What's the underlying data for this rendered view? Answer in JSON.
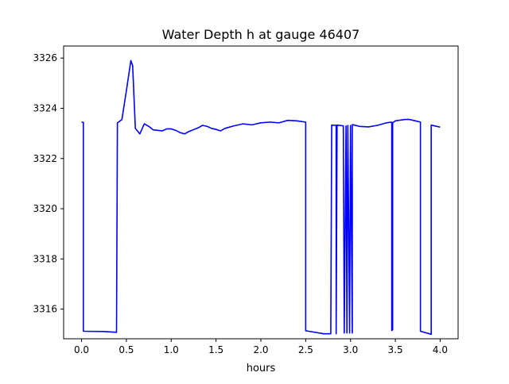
{
  "chart_data": {
    "type": "line",
    "title": "Water Depth h at gauge 46407",
    "xlabel": "hours",
    "ylabel": "",
    "xlim": [
      -0.2,
      4.2
    ],
    "ylim": [
      3314.82,
      3326.48
    ],
    "x_ticks": [
      0.0,
      0.5,
      1.0,
      1.5,
      2.0,
      2.5,
      3.0,
      3.5,
      4.0
    ],
    "x_tick_labels": [
      "0.0",
      "0.5",
      "1.0",
      "1.5",
      "2.0",
      "2.5",
      "3.0",
      "3.5",
      "4.0"
    ],
    "y_ticks": [
      3316,
      3318,
      3320,
      3322,
      3324,
      3326
    ],
    "y_tick_labels": [
      "3316",
      "3318",
      "3320",
      "3322",
      "3324",
      "3326"
    ],
    "grid": false,
    "legend": "none",
    "series": [
      {
        "color": "#0000ff",
        "x": [
          0.0,
          0.02,
          0.02,
          0.25,
          0.39,
          0.4,
          0.45,
          0.5,
          0.55,
          0.57,
          0.6,
          0.65,
          0.7,
          0.75,
          0.8,
          0.85,
          0.9,
          0.95,
          1.0,
          1.05,
          1.1,
          1.15,
          1.2,
          1.3,
          1.35,
          1.4,
          1.45,
          1.5,
          1.55,
          1.6,
          1.7,
          1.8,
          1.9,
          2.0,
          2.1,
          2.2,
          2.3,
          2.4,
          2.5,
          2.5,
          2.6,
          2.7,
          2.78,
          2.79,
          2.84,
          2.84,
          2.85,
          2.92,
          2.93,
          2.95,
          2.96,
          2.97,
          2.99,
          3.0,
          3.02,
          3.02,
          3.1,
          3.2,
          3.3,
          3.4,
          3.46,
          3.46,
          3.47,
          3.47,
          3.5,
          3.6,
          3.65,
          3.7,
          3.78,
          3.78,
          3.9,
          3.9,
          4.0
        ],
        "y": [
          3323.45,
          3323.44,
          3315.12,
          3315.11,
          3315.08,
          3323.42,
          3323.55,
          3324.7,
          3325.9,
          3325.7,
          3323.2,
          3322.98,
          3323.38,
          3323.28,
          3323.14,
          3323.12,
          3323.1,
          3323.18,
          3323.18,
          3323.12,
          3323.03,
          3322.98,
          3323.08,
          3323.22,
          3323.32,
          3323.28,
          3323.2,
          3323.16,
          3323.1,
          3323.2,
          3323.3,
          3323.38,
          3323.34,
          3323.42,
          3323.45,
          3323.42,
          3323.52,
          3323.5,
          3323.45,
          3315.14,
          3315.08,
          3315.02,
          3315.02,
          3323.33,
          3323.32,
          3315.02,
          3323.33,
          3323.3,
          3315.05,
          3323.3,
          3315.05,
          3323.32,
          3315.05,
          3323.32,
          3315.05,
          3323.35,
          3323.28,
          3323.26,
          3323.32,
          3323.42,
          3323.45,
          3315.15,
          3315.18,
          3323.42,
          3323.5,
          3323.55,
          3323.56,
          3323.52,
          3323.45,
          3315.12,
          3315.0,
          3323.33,
          3323.25
        ]
      }
    ]
  }
}
